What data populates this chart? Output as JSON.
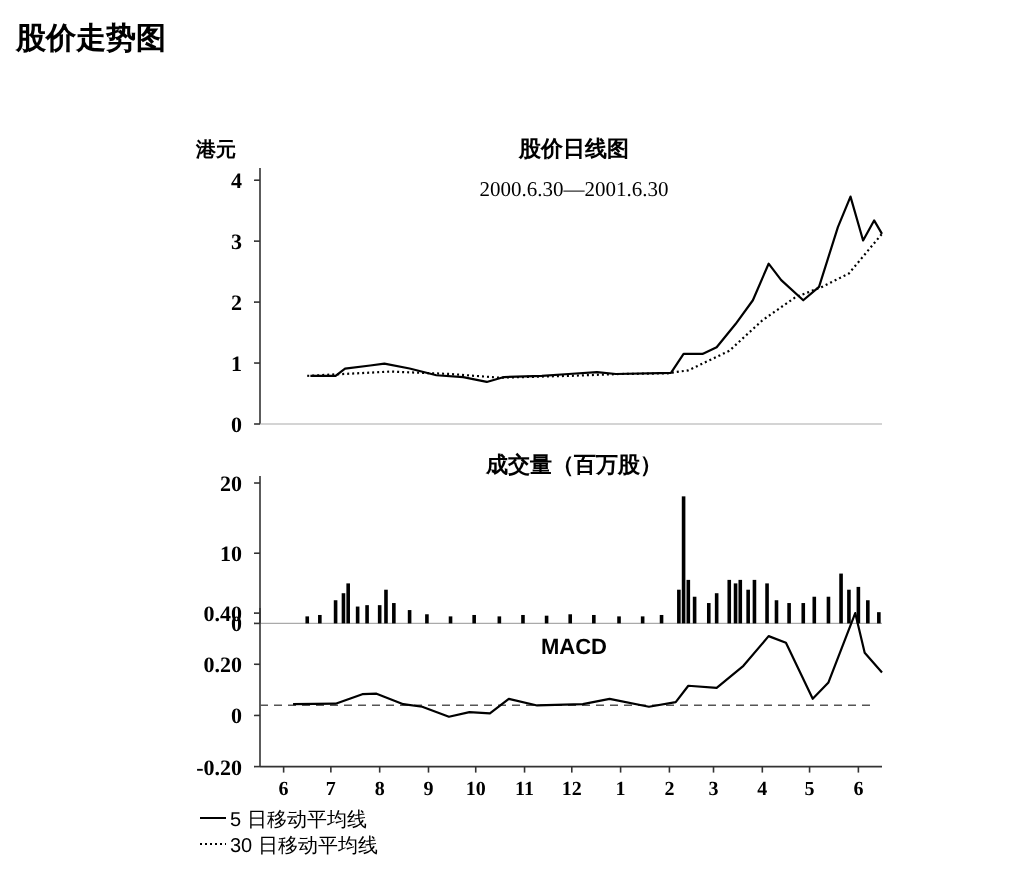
{
  "chart_data": [
    {
      "type": "line",
      "title": "股价日线图",
      "subtitle": "2000.6.30—2001.6.30",
      "ylabel": "港元",
      "annotations": [
        "股价走势图"
      ],
      "xlim": [
        "2000-05-31",
        "2001-06-30"
      ],
      "ylim": [
        0,
        4.2
      ],
      "yticks": [
        0,
        1,
        2,
        3,
        4
      ],
      "tick_labels": "y",
      "legend": "bottom left",
      "series": [
        {
          "name": "5 日移动平均线",
          "color": "#000000",
          "line_style": "solid",
          "x": [
            "2000-07-02",
            "2000-07-18",
            "2000-07-24",
            "2000-08-09",
            "2000-08-18",
            "2000-09-03",
            "2000-09-20",
            "2000-10-07",
            "2000-10-22",
            "2000-11-02",
            "2000-11-26",
            "2000-12-13",
            "2000-12-31",
            "2001-01-12",
            "2001-02-16",
            "2001-02-24",
            "2001-03-08",
            "2001-03-17",
            "2001-03-29",
            "2001-04-09",
            "2001-04-19",
            "2001-04-27",
            "2001-05-11",
            "2001-05-21",
            "2001-06-02",
            "2001-06-10",
            "2001-06-18",
            "2001-06-25",
            "2001-06-30"
          ],
          "values": [
            0.79,
            0.79,
            0.91,
            0.96,
            0.99,
            0.91,
            0.8,
            0.77,
            0.69,
            0.77,
            0.79,
            0.82,
            0.85,
            0.82,
            0.84,
            1.15,
            1.15,
            1.26,
            1.64,
            2.03,
            2.63,
            2.36,
            2.03,
            2.25,
            3.23,
            3.73,
            3.01,
            3.34,
            3.12
          ]
        },
        {
          "name": "30 日移动平均线",
          "color": "#000000",
          "line_style": "dotted",
          "x": [
            "2000-06-30",
            "2000-08-22",
            "2000-09-29",
            "2000-10-30",
            "2000-12-14",
            "2001-01-14",
            "2001-02-13",
            "2001-02-27",
            "2001-03-25",
            "2001-04-15",
            "2001-05-06",
            "2001-05-23",
            "2001-06-09",
            "2001-06-30"
          ],
          "values": [
            0.79,
            0.86,
            0.82,
            0.76,
            0.79,
            0.82,
            0.83,
            0.88,
            1.2,
            1.7,
            2.08,
            2.25,
            2.47,
            3.12
          ]
        }
      ]
    },
    {
      "type": "bar",
      "title": "成交量（百万股）",
      "xlim": [
        "2000-05-31",
        "2001-06-30"
      ],
      "ylim": [
        0,
        21
      ],
      "yticks": [
        0,
        10,
        20
      ],
      "tick_labels": "y",
      "color": "#000000",
      "x": [
        "2000-06-30",
        "2000-07-08",
        "2000-07-18",
        "2000-07-23",
        "2000-07-26",
        "2000-08-01",
        "2000-08-07",
        "2000-08-15",
        "2000-08-19",
        "2000-08-24",
        "2000-09-03",
        "2000-09-14",
        "2000-09-29",
        "2000-10-14",
        "2000-10-30",
        "2000-11-14",
        "2000-11-29",
        "2000-12-14",
        "2000-12-29",
        "2001-01-14",
        "2001-01-29",
        "2001-02-10",
        "2001-02-21",
        "2001-02-24",
        "2001-02-27",
        "2001-03-03",
        "2001-03-12",
        "2001-03-17",
        "2001-03-25",
        "2001-03-29",
        "2001-04-01",
        "2001-04-06",
        "2001-04-10",
        "2001-04-18",
        "2001-04-24",
        "2001-05-02",
        "2001-05-11",
        "2001-05-18",
        "2001-05-27",
        "2001-06-04",
        "2001-06-09",
        "2001-06-15",
        "2001-06-21",
        "2001-06-28"
      ],
      "values": [
        1.0,
        1.2,
        3.3,
        4.3,
        5.7,
        2.4,
        2.6,
        2.6,
        4.8,
        2.9,
        1.9,
        1.3,
        1.0,
        1.2,
        1.0,
        1.2,
        1.1,
        1.3,
        1.2,
        1.0,
        1.0,
        1.2,
        4.8,
        18.1,
        6.2,
        3.8,
        2.9,
        4.3,
        6.2,
        5.7,
        6.2,
        4.8,
        6.2,
        5.7,
        3.3,
        2.9,
        2.9,
        3.8,
        3.8,
        7.1,
        4.8,
        5.2,
        3.3,
        1.6
      ]
    },
    {
      "type": "line",
      "title": "MACD",
      "xlim": [
        "2000-05-31",
        "2001-06-30"
      ],
      "ylim": [
        -0.2,
        0.42
      ],
      "yticks": [
        {
          "value": -0.2,
          "label": "-0.20"
        },
        0,
        {
          "value": 0.2,
          "label": "0.20"
        },
        {
          "value": 0.4,
          "label": "0.40"
        }
      ],
      "xticks": [
        {
          "value": "2000-06-15",
          "label": "6"
        },
        {
          "value": "2000-07-15",
          "label": "7"
        },
        {
          "value": "2000-08-15",
          "label": "8"
        },
        {
          "value": "2000-09-15",
          "label": "9"
        },
        {
          "value": "2000-10-15",
          "label": "10"
        },
        {
          "value": "2000-11-15",
          "label": "11"
        },
        {
          "value": "2000-12-15",
          "label": "12"
        },
        {
          "value": "2001-01-15",
          "label": "1"
        },
        {
          "value": "2001-02-15",
          "label": "2"
        },
        {
          "value": "2001-03-15",
          "label": "3"
        },
        {
          "value": "2001-04-15",
          "label": "4"
        },
        {
          "value": "2001-05-15",
          "label": "5"
        },
        {
          "value": "2001-06-15",
          "label": "6"
        }
      ],
      "color": "#000000",
      "ref_lines": [
        {
          "axis": "y",
          "value": 0.04,
          "color": "#555555",
          "line_style": "dashed"
        }
      ],
      "x": [
        "2000-06-21",
        "2000-07-18",
        "2000-08-04",
        "2000-08-13",
        "2000-08-30",
        "2000-09-11",
        "2000-09-28",
        "2000-10-11",
        "2000-10-24",
        "2000-11-05",
        "2000-11-23",
        "2000-12-22",
        "2001-01-08",
        "2001-02-02",
        "2001-02-19",
        "2001-02-27",
        "2001-03-17",
        "2001-04-03",
        "2001-04-19",
        "2001-04-30",
        "2001-05-17",
        "2001-05-27",
        "2001-06-13",
        "2001-06-19",
        "2001-06-30"
      ],
      "values": [
        0.044,
        0.046,
        0.083,
        0.085,
        0.044,
        0.034,
        -0.005,
        0.013,
        0.008,
        0.065,
        0.039,
        0.044,
        0.065,
        0.034,
        0.052,
        0.116,
        0.108,
        0.194,
        0.31,
        0.284,
        0.065,
        0.129,
        0.4,
        0.245,
        0.168
      ]
    }
  ]
}
